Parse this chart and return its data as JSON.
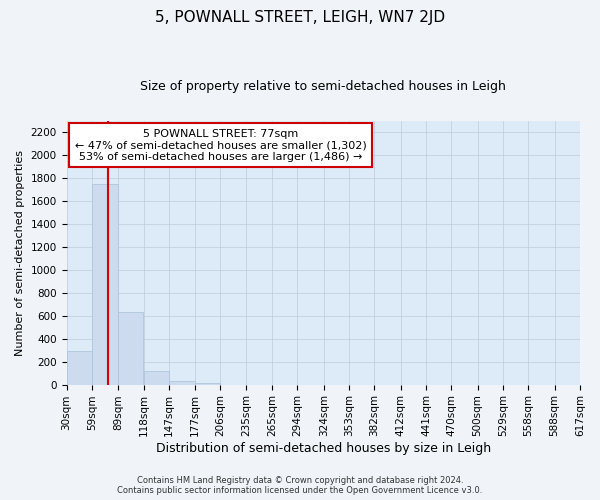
{
  "title": "5, POWNALL STREET, LEIGH, WN7 2JD",
  "subtitle": "Size of property relative to semi-detached houses in Leigh",
  "xlabel": "Distribution of semi-detached houses by size in Leigh",
  "ylabel": "Number of semi-detached properties",
  "footer_line1": "Contains HM Land Registry data © Crown copyright and database right 2024.",
  "footer_line2": "Contains public sector information licensed under the Open Government Licence v3.0.",
  "bar_edges": [
    30,
    59,
    89,
    118,
    147,
    177,
    206,
    235,
    265,
    294,
    324,
    353,
    382,
    412,
    441,
    470,
    500,
    529,
    558,
    588,
    617
  ],
  "bar_values": [
    290,
    1750,
    635,
    115,
    35,
    18,
    0,
    0,
    0,
    0,
    0,
    0,
    0,
    0,
    0,
    0,
    0,
    0,
    0,
    0
  ],
  "bar_color": "#ccdcee",
  "bar_edge_color": "#aac0d8",
  "grid_color": "#bbccdd",
  "ylim": [
    0,
    2300
  ],
  "yticks": [
    0,
    200,
    400,
    600,
    800,
    1000,
    1200,
    1400,
    1600,
    1800,
    2000,
    2200
  ],
  "property_size": 77,
  "red_line_color": "#dd0000",
  "annotation_text": "5 POWNALL STREET: 77sqm\n← 47% of semi-detached houses are smaller (1,302)\n53% of semi-detached houses are larger (1,486) →",
  "annotation_box_color": "#ffffff",
  "annotation_box_edge_color": "#cc0000",
  "background_color": "#f0f4f8",
  "plot_background_color": "#ddeaf7",
  "tick_label_fontsize": 7.5,
  "title_fontsize": 11,
  "subtitle_fontsize": 9,
  "xlabel_fontsize": 9,
  "ylabel_fontsize": 8,
  "annotation_fontsize": 8
}
